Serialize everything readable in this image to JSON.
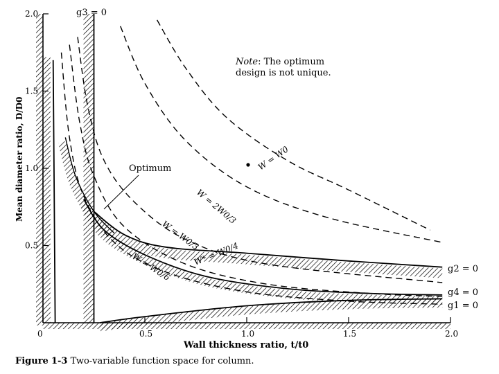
{
  "figure": {
    "caption_prefix": "Figure",
    "caption_number": "1-3",
    "caption_text": "Two-variable function space for column."
  },
  "chart_data": {
    "type": "line",
    "title": "",
    "xlabel": "Wall thickness ratio, t/t0",
    "ylabel": "Mean diameter ratio, D/D0",
    "xlim": [
      0,
      2.0
    ],
    "ylim": [
      0,
      2.0
    ],
    "x_ticks": [
      "0",
      "0.5",
      "1.0",
      "1.5",
      "2.0"
    ],
    "y_ticks": [
      "0.5",
      "1.0",
      "1.5",
      "2.0"
    ],
    "note_line1_italic": "Note",
    "note_line1_rest": ": The optimum",
    "note_line2": "design is not unique.",
    "optimum_label": "Optimum",
    "constraints": [
      {
        "name": "g1=0",
        "label": "g1 = 0",
        "points": [
          [
            0.28,
            0.0
          ],
          [
            0.5,
            0.04
          ],
          [
            1.0,
            0.11
          ],
          [
            1.5,
            0.145
          ],
          [
            1.96,
            0.155
          ]
        ]
      },
      {
        "name": "g2=0",
        "label": "g2 = 0",
        "points": [
          [
            0.25,
            0.72
          ],
          [
            0.4,
            0.57
          ],
          [
            0.6,
            0.49
          ],
          [
            1.0,
            0.45
          ],
          [
            1.5,
            0.4
          ],
          [
            1.96,
            0.36
          ]
        ]
      },
      {
        "name": "g3=0",
        "label": "g3 = 0",
        "points": [
          [
            0.25,
            0.0
          ],
          [
            0.25,
            2.0
          ]
        ]
      },
      {
        "name": "g4=0",
        "label": "g4 = 0",
        "points": [
          [
            0.2,
            0.8
          ],
          [
            0.3,
            0.6
          ],
          [
            0.5,
            0.44
          ],
          [
            0.8,
            0.3
          ],
          [
            1.2,
            0.22
          ],
          [
            1.6,
            0.19
          ],
          [
            1.96,
            0.18
          ]
        ]
      },
      {
        "name": "left-boundary",
        "label": "",
        "points": [
          [
            0.05,
            1.7
          ],
          [
            0.06,
            0.0
          ]
        ]
      }
    ],
    "contours": [
      {
        "name": "W = W0",
        "label": "W = W0",
        "points": [
          [
            0.56,
            1.96
          ],
          [
            0.7,
            1.65
          ],
          [
            0.9,
            1.33
          ],
          [
            1.2,
            1.05
          ],
          [
            1.5,
            0.86
          ],
          [
            1.9,
            0.6
          ]
        ]
      },
      {
        "name": "W = 2W0/3",
        "label": "W = 2W0/3",
        "points": [
          [
            0.38,
            1.92
          ],
          [
            0.5,
            1.55
          ],
          [
            0.7,
            1.18
          ],
          [
            1.0,
            0.88
          ],
          [
            1.4,
            0.68
          ],
          [
            1.96,
            0.52
          ]
        ]
      },
      {
        "name": "W = W0/3",
        "label": "W = W0/3",
        "points": [
          [
            0.17,
            1.85
          ],
          [
            0.22,
            1.4
          ],
          [
            0.3,
            1.05
          ],
          [
            0.45,
            0.78
          ],
          [
            0.7,
            0.54
          ],
          [
            1.1,
            0.38
          ],
          [
            1.96,
            0.26
          ]
        ]
      },
      {
        "name": "W = W0/4",
        "label": "W* = W0/4",
        "points": [
          [
            0.13,
            1.8
          ],
          [
            0.18,
            1.3
          ],
          [
            0.25,
            0.95
          ],
          [
            0.4,
            0.62
          ],
          [
            0.7,
            0.38
          ],
          [
            1.1,
            0.25
          ],
          [
            1.6,
            0.19
          ],
          [
            1.96,
            0.17
          ]
        ]
      },
      {
        "name": "W = W0/6",
        "label": "W = W0/6",
        "points": [
          [
            0.09,
            1.75
          ],
          [
            0.13,
            1.2
          ],
          [
            0.2,
            0.82
          ],
          [
            0.35,
            0.52
          ],
          [
            0.6,
            0.33
          ],
          [
            1.0,
            0.2
          ],
          [
            1.5,
            0.14
          ],
          [
            1.96,
            0.12
          ]
        ]
      }
    ],
    "optimum_curve": {
      "name": "optimum-solid",
      "points": [
        [
          0.11,
          1.2
        ],
        [
          0.16,
          0.95
        ],
        [
          0.25,
          0.72
        ],
        [
          0.35,
          0.58
        ]
      ]
    }
  }
}
